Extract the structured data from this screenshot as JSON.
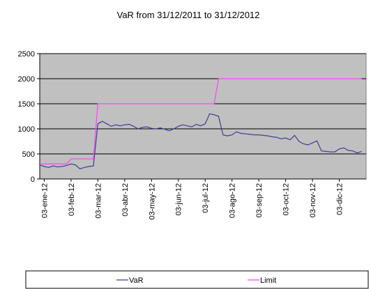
{
  "chart_data": {
    "type": "line",
    "title": "VaR from 31/12/2011 to 31/12/2012",
    "categories": [
      null,
      "03-ene-12",
      null,
      null,
      null,
      null,
      null,
      "03-feb-12",
      null,
      null,
      null,
      null,
      null,
      "03-mar-12",
      null,
      null,
      null,
      null,
      null,
      "03-abr-12",
      null,
      null,
      null,
      null,
      null,
      "03-may-12",
      null,
      null,
      null,
      null,
      null,
      "03-jun-12",
      null,
      null,
      null,
      null,
      null,
      "03-jul-12",
      null,
      null,
      null,
      null,
      null,
      "03-ago-12",
      null,
      null,
      null,
      null,
      null,
      "03-sep-12",
      null,
      null,
      null,
      null,
      null,
      "03-oct-12",
      null,
      null,
      null,
      null,
      null,
      "03-nov-12",
      null,
      null,
      null,
      null,
      null,
      "03-dic-12",
      null,
      null,
      null,
      null,
      null
    ],
    "series": [
      {
        "name": "VaR",
        "color": "#3c3c96",
        "values": [
          280,
          250,
          230,
          260,
          240,
          250,
          270,
          300,
          280,
          200,
          230,
          250,
          260,
          1100,
          1150,
          1100,
          1050,
          1080,
          1060,
          1080,
          1090,
          1050,
          1000,
          1030,
          1040,
          1010,
          1000,
          1020,
          990,
          960,
          1000,
          1050,
          1080,
          1060,
          1040,
          1090,
          1060,
          1100,
          1300,
          1280,
          1250,
          880,
          860,
          880,
          940,
          910,
          900,
          890,
          880,
          880,
          870,
          860,
          840,
          830,
          800,
          820,
          780,
          870,
          750,
          700,
          680,
          720,
          760,
          560,
          550,
          540,
          540,
          600,
          620,
          570,
          560,
          520,
          550
        ]
      },
      {
        "name": "Limit",
        "color": "#ff40ff",
        "values": [
          300,
          300,
          300,
          300,
          300,
          300,
          300,
          400,
          400,
          400,
          400,
          400,
          400,
          1500,
          1500,
          1500,
          1500,
          1500,
          1500,
          1500,
          1500,
          1500,
          1500,
          1500,
          1500,
          1500,
          1500,
          1500,
          1500,
          1500,
          1500,
          1500,
          1500,
          1500,
          1500,
          1500,
          1500,
          1500,
          1500,
          1500,
          2000,
          2000,
          2000,
          2000,
          2000,
          2000,
          2000,
          2000,
          2000,
          2000,
          2000,
          2000,
          2000,
          2000,
          2000,
          2000,
          2000,
          2000,
          2000,
          2000,
          2000,
          2000,
          2000,
          2000,
          2000,
          2000,
          2000,
          2000,
          2000,
          2000,
          2000,
          2000,
          2000
        ]
      }
    ],
    "ylim": [
      0,
      2500
    ],
    "yticks": [
      0,
      500,
      1000,
      1500,
      2000,
      2500
    ],
    "grid": true,
    "plot_background": "#c0c0c0",
    "legend": "bottom"
  }
}
